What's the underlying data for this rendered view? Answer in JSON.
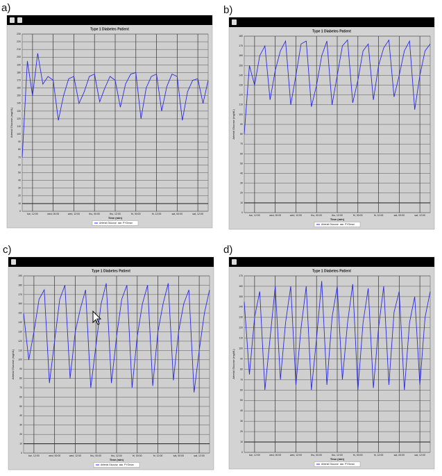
{
  "chart_data": [
    {
      "type": "line",
      "panel_label": "a)",
      "title": "Type 1 Diabetes Patient",
      "ylabel": "Arterial Glucose (mg/dL)",
      "xlabel": "Time (min)",
      "x": [
        0,
        3,
        6,
        9,
        12,
        15,
        18,
        21,
        24,
        27,
        30,
        33,
        36,
        39,
        42,
        45,
        48,
        51,
        54,
        57,
        60,
        63,
        66,
        69,
        72,
        75,
        78,
        81,
        84,
        87,
        90,
        93,
        96,
        99,
        102,
        105,
        108
      ],
      "series": [
        {
          "name": "Arterial Glucose",
          "color": "#2a2ae6",
          "values": [
            70,
            195,
            150,
            205,
            165,
            175,
            170,
            118,
            150,
            172,
            175,
            140,
            155,
            175,
            178,
            142,
            160,
            175,
            170,
            135,
            165,
            178,
            180,
            120,
            160,
            175,
            178,
            130,
            162,
            178,
            175,
            118,
            155,
            170,
            172,
            140,
            170
          ]
        },
        {
          "name": "PYGmax",
          "color": "#303030",
          "values": [
            10,
            10,
            10,
            10,
            10,
            10,
            10,
            10,
            10,
            10,
            10,
            10,
            10,
            10,
            10,
            10,
            10,
            10,
            10,
            10,
            10,
            10,
            10,
            10,
            10,
            10,
            10,
            10,
            10,
            10,
            10,
            10,
            10,
            10,
            10,
            10,
            10
          ]
        }
      ],
      "xlim": [
        0,
        108
      ],
      "ylim": [
        0,
        230
      ],
      "xticks": [
        {
          "value": 6,
          "label": "tue, 12:00"
        },
        {
          "value": 18,
          "label": "wed, 00:00"
        },
        {
          "value": 30,
          "label": "wed, 12:00"
        },
        {
          "value": 42,
          "label": "thu, 00:00"
        },
        {
          "value": 54,
          "label": "thu, 12:00"
        },
        {
          "value": 66,
          "label": "fri, 00:00"
        },
        {
          "value": 78,
          "label": "fri, 12:00"
        },
        {
          "value": 90,
          "label": "sat, 00:00"
        },
        {
          "value": 102,
          "label": "sat, 12:00"
        }
      ],
      "yticks": [
        0,
        10,
        20,
        30,
        40,
        50,
        60,
        70,
        80,
        90,
        100,
        110,
        120,
        130,
        140,
        150,
        160,
        170,
        180,
        190,
        200,
        210,
        220,
        230
      ],
      "grid": true
    },
    {
      "type": "line",
      "panel_label": "b)",
      "title": "Type 1 Diabetes Patient",
      "ylabel": "Arterial Glucose (mg/dL)",
      "xlabel": "Time (min)",
      "x": [
        0,
        3,
        6,
        9,
        12,
        15,
        18,
        21,
        24,
        27,
        30,
        33,
        36,
        39,
        42,
        45,
        48,
        51,
        54,
        57,
        60,
        63,
        66,
        69,
        72,
        75,
        78,
        81,
        84,
        87,
        90,
        93,
        96,
        99,
        102,
        105,
        108
      ],
      "series": [
        {
          "name": "Arterial Glucose",
          "color": "#2a2ae6",
          "values": [
            80,
            150,
            130,
            160,
            170,
            115,
            145,
            165,
            175,
            110,
            140,
            172,
            175,
            108,
            130,
            160,
            175,
            110,
            140,
            170,
            176,
            112,
            135,
            165,
            172,
            115,
            150,
            168,
            176,
            118,
            140,
            165,
            175,
            105,
            140,
            165,
            172
          ]
        },
        {
          "name": "PYGmax",
          "color": "#303030",
          "values": [
            10,
            10,
            10,
            10,
            10,
            10,
            10,
            10,
            10,
            10,
            10,
            10,
            10,
            10,
            10,
            10,
            10,
            10,
            10,
            10,
            10,
            10,
            10,
            10,
            10,
            10,
            10,
            10,
            10,
            10,
            10,
            10,
            10,
            10,
            10,
            10,
            10
          ]
        }
      ],
      "xlim": [
        0,
        108
      ],
      "ylim": [
        0,
        180
      ],
      "xticks": [
        {
          "value": 6,
          "label": "tue, 12:00"
        },
        {
          "value": 18,
          "label": "wed, 00:00"
        },
        {
          "value": 30,
          "label": "wed, 12:00"
        },
        {
          "value": 42,
          "label": "thu, 00:00"
        },
        {
          "value": 54,
          "label": "thu, 12:00"
        },
        {
          "value": 66,
          "label": "fri, 00:00"
        },
        {
          "value": 78,
          "label": "fri, 12:00"
        },
        {
          "value": 90,
          "label": "sat, 00:00"
        },
        {
          "value": 102,
          "label": "sat, 12:00"
        }
      ],
      "yticks": [
        0,
        10,
        20,
        30,
        40,
        50,
        60,
        70,
        80,
        90,
        100,
        110,
        120,
        130,
        140,
        150,
        160,
        170,
        180
      ],
      "grid": true
    },
    {
      "type": "line",
      "panel_label": "c)",
      "title": "Type 1 Diabetes Patient",
      "ylabel": "Arterial Glucose (mg/dL)",
      "xlabel": "Time (min)",
      "x": [
        0,
        3,
        6,
        9,
        12,
        15,
        18,
        21,
        24,
        27,
        30,
        33,
        36,
        39,
        42,
        45,
        48,
        51,
        54,
        57,
        60,
        63,
        66,
        69,
        72,
        75,
        78,
        81,
        84,
        87,
        90,
        93,
        96,
        99,
        102,
        105,
        108
      ],
      "series": [
        {
          "name": "Arterial Glucose",
          "color": "#2a2ae6",
          "values": [
            150,
            100,
            130,
            165,
            175,
            75,
            120,
            165,
            180,
            80,
            130,
            155,
            175,
            70,
            115,
            160,
            182,
            75,
            125,
            165,
            180,
            70,
            125,
            160,
            180,
            72,
            130,
            160,
            182,
            78,
            130,
            160,
            175,
            65,
            110,
            150,
            175
          ]
        },
        {
          "name": "PYGmax",
          "color": "#303030",
          "values": [
            10,
            10,
            10,
            10,
            10,
            10,
            10,
            10,
            10,
            10,
            10,
            10,
            10,
            10,
            10,
            10,
            10,
            10,
            10,
            10,
            10,
            10,
            10,
            10,
            10,
            10,
            10,
            10,
            10,
            10,
            10,
            10,
            10,
            10,
            10,
            10,
            10
          ]
        }
      ],
      "xlim": [
        0,
        108
      ],
      "ylim": [
        0,
        190
      ],
      "xticks": [
        {
          "value": 6,
          "label": "tue, 12:00"
        },
        {
          "value": 18,
          "label": "wed, 00:00"
        },
        {
          "value": 30,
          "label": "wed, 12:00"
        },
        {
          "value": 42,
          "label": "thu, 00:00"
        },
        {
          "value": 54,
          "label": "thu, 12:00"
        },
        {
          "value": 66,
          "label": "fri, 00:00"
        },
        {
          "value": 78,
          "label": "fri, 12:00"
        },
        {
          "value": 90,
          "label": "sat, 00:00"
        },
        {
          "value": 102,
          "label": "sat, 12:00"
        }
      ],
      "yticks": [
        0,
        10,
        20,
        30,
        40,
        50,
        60,
        70,
        80,
        90,
        100,
        110,
        120,
        130,
        140,
        150,
        160,
        170,
        180,
        190
      ],
      "grid": true
    },
    {
      "type": "line",
      "panel_label": "d)",
      "title": "Type 1 Diabetes Patient",
      "ylabel": "Arterial Glucose (mg/dL)",
      "xlabel": "Time (min)",
      "x": [
        0,
        3,
        6,
        9,
        12,
        15,
        18,
        21,
        24,
        27,
        30,
        33,
        36,
        39,
        42,
        45,
        48,
        51,
        54,
        57,
        60,
        63,
        66,
        69,
        72,
        75,
        78,
        81,
        84,
        87,
        90,
        93,
        96,
        99,
        102,
        105,
        108
      ],
      "series": [
        {
          "name": "Arterial Glucose",
          "color": "#2a2ae6",
          "values": [
            145,
            75,
            130,
            155,
            60,
            110,
            160,
            70,
            125,
            160,
            65,
            120,
            160,
            60,
            110,
            165,
            65,
            130,
            160,
            70,
            125,
            162,
            60,
            125,
            158,
            62,
            120,
            160,
            65,
            135,
            155,
            60,
            125,
            150,
            65,
            130,
            155
          ]
        },
        {
          "name": "PYGmax",
          "color": "#303030",
          "values": [
            10,
            10,
            10,
            10,
            10,
            10,
            10,
            10,
            10,
            10,
            10,
            10,
            10,
            10,
            10,
            10,
            10,
            10,
            10,
            10,
            10,
            10,
            10,
            10,
            10,
            10,
            10,
            10,
            10,
            10,
            10,
            10,
            10,
            10,
            10,
            10,
            10
          ]
        }
      ],
      "xlim": [
        0,
        108
      ],
      "ylim": [
        0,
        170
      ],
      "xticks": [
        {
          "value": 6,
          "label": "tue, 12:00"
        },
        {
          "value": 18,
          "label": "wed, 00:00"
        },
        {
          "value": 30,
          "label": "wed, 12:00"
        },
        {
          "value": 42,
          "label": "thu, 00:00"
        },
        {
          "value": 54,
          "label": "thu, 12:00"
        },
        {
          "value": 66,
          "label": "fri, 00:00"
        },
        {
          "value": 78,
          "label": "fri, 12:00"
        },
        {
          "value": 90,
          "label": "sat, 00:00"
        },
        {
          "value": 102,
          "label": "sat, 12:00"
        }
      ],
      "yticks": [
        0,
        10,
        20,
        30,
        40,
        50,
        60,
        70,
        80,
        90,
        100,
        110,
        120,
        130,
        140,
        150,
        160,
        170
      ],
      "grid": true
    }
  ]
}
